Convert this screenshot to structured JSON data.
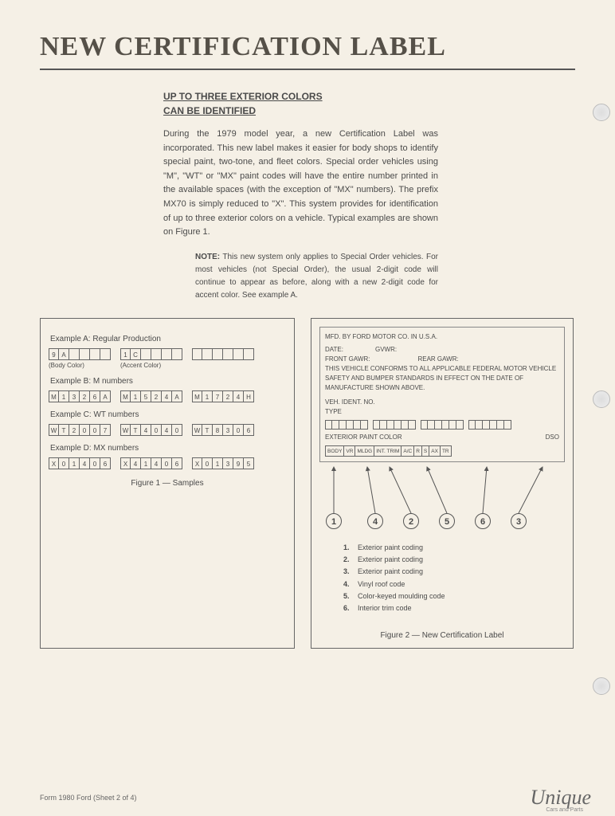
{
  "title": "NEW CERTIFICATION LABEL",
  "subtitle_l1": "UP TO THREE EXTERIOR COLORS",
  "subtitle_l2": "CAN BE IDENTIFIED",
  "body": "During the 1979 model year, a new Certification Label was incorporated. This new label makes it easier for body shops to identify special paint, two-tone, and fleet colors. Special order vehicles using \"M\", \"WT\" or \"MX\" paint codes will have the entire number printed in the available spaces (with the exception of \"MX\" numbers). The prefix MX70 is simply reduced to \"X\". This system provides for identification of up to three exterior colors on a vehicle. Typical examples are shown on Figure 1.",
  "note_label": "NOTE:",
  "note": " This new system only applies to Special Order vehicles. For most vehicles (not Special Order), the usual 2-digit code will continue to appear as before, along with a new 2-digit code for accent color. See example A.",
  "examples": {
    "a": {
      "label": "Example A:  Regular Production",
      "g1": [
        "9",
        "A",
        "",
        "",
        "",
        ""
      ],
      "g1_lbl": "(Body Color)",
      "g2": [
        "1",
        "C",
        "",
        "",
        "",
        ""
      ],
      "g2_lbl": "(Accent Color)",
      "g3": [
        "",
        "",
        "",
        "",
        "",
        ""
      ]
    },
    "b": {
      "label": "Example B:  M numbers",
      "g1": [
        "M",
        "1",
        "3",
        "2",
        "6",
        "A"
      ],
      "g2": [
        "M",
        "1",
        "5",
        "2",
        "4",
        "A"
      ],
      "g3": [
        "M",
        "1",
        "7",
        "2",
        "4",
        "H"
      ]
    },
    "c": {
      "label": "Example C:  WT numbers",
      "g1": [
        "W",
        "T",
        "2",
        "0",
        "0",
        "7"
      ],
      "g2": [
        "W",
        "T",
        "4",
        "0",
        "4",
        "0"
      ],
      "g3": [
        "W",
        "T",
        "8",
        "3",
        "0",
        "6"
      ]
    },
    "d": {
      "label": "Example D:  MX numbers",
      "g1": [
        "X",
        "0",
        "1",
        "4",
        "0",
        "6"
      ],
      "g2": [
        "X",
        "4",
        "1",
        "4",
        "0",
        "6"
      ],
      "g3": [
        "X",
        "0",
        "1",
        "3",
        "9",
        "5"
      ]
    }
  },
  "fig1_caption": "Figure 1 — Samples",
  "label_text": {
    "mfd": "MFD. BY FORD MOTOR CO. IN U.S.A.",
    "date": "DATE:",
    "gvwr": "GVWR:",
    "front": "FRONT GAWR:",
    "rear": "REAR GAWR:",
    "conform": "THIS VEHICLE CONFORMS TO ALL APPLICABLE FEDERAL MOTOR VEHICLE SAFETY AND BUMPER STANDARDS IN EFFECT ON THE DATE OF MANUFACTURE SHOWN ABOVE.",
    "vin": "VEH. IDENT. NO.",
    "type": "TYPE",
    "ext_paint": "EXTERIOR PAINT COLOR",
    "dso": "DSO",
    "cols": [
      "BODY",
      "VR",
      "MLDG",
      "INT. TRIM",
      "A/C",
      "R",
      "S",
      "AX",
      "TR"
    ]
  },
  "legend": [
    "Exterior paint coding",
    "Exterior paint coding",
    "Exterior paint coding",
    "Vinyl roof code",
    "Color-keyed moulding code",
    "Interior trim code"
  ],
  "fig2_caption": "Figure 2 — New Certification Label",
  "footer": "Form 1980 Ford (Sheet 2 of 4)",
  "watermark": "Unique",
  "watermark_sub": "Cars and Parts",
  "colors": {
    "page_bg": "#f5f0e6",
    "ink": "#4a4a4a",
    "rule": "#555"
  }
}
